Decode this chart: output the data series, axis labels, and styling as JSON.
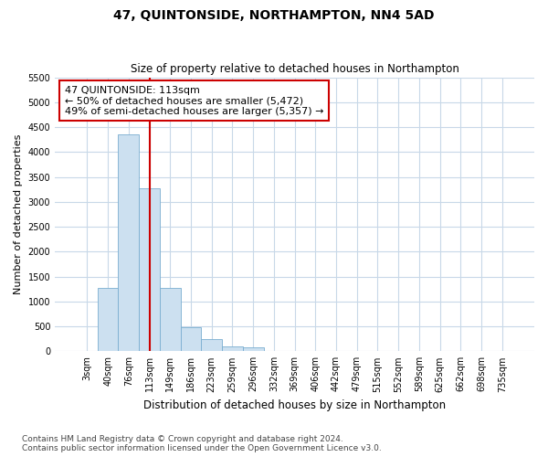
{
  "title": "47, QUINTONSIDE, NORTHAMPTON, NN4 5AD",
  "subtitle": "Size of property relative to detached houses in Northampton",
  "xlabel": "Distribution of detached houses by size in Northampton",
  "ylabel": "Number of detached properties",
  "categories": [
    "3sqm",
    "40sqm",
    "76sqm",
    "113sqm",
    "149sqm",
    "186sqm",
    "223sqm",
    "259sqm",
    "296sqm",
    "332sqm",
    "369sqm",
    "406sqm",
    "442sqm",
    "479sqm",
    "515sqm",
    "552sqm",
    "589sqm",
    "625sqm",
    "662sqm",
    "698sqm",
    "735sqm"
  ],
  "values": [
    0,
    1270,
    4350,
    3280,
    1270,
    480,
    240,
    100,
    70,
    0,
    0,
    0,
    0,
    0,
    0,
    0,
    0,
    0,
    0,
    0,
    0
  ],
  "bar_color": "#cce0f0",
  "bar_edge_color": "#7aaed0",
  "vline_index": 3,
  "vline_color": "#cc0000",
  "annotation_text": "47 QUINTONSIDE: 113sqm\n← 50% of detached houses are smaller (5,472)\n49% of semi-detached houses are larger (5,357) →",
  "annotation_box_facecolor": "white",
  "annotation_box_edgecolor": "#cc0000",
  "ylim": [
    0,
    5500
  ],
  "yticks": [
    0,
    500,
    1000,
    1500,
    2000,
    2500,
    3000,
    3500,
    4000,
    4500,
    5000,
    5500
  ],
  "footnote": "Contains HM Land Registry data © Crown copyright and database right 2024.\nContains public sector information licensed under the Open Government Licence v3.0.",
  "title_fontsize": 10,
  "subtitle_fontsize": 8.5,
  "xlabel_fontsize": 8.5,
  "ylabel_fontsize": 8,
  "tick_fontsize": 7,
  "annotation_fontsize": 8,
  "footnote_fontsize": 6.5,
  "background_color": "white",
  "grid_color": "#c8d8e8",
  "plot_bg_color": "white"
}
